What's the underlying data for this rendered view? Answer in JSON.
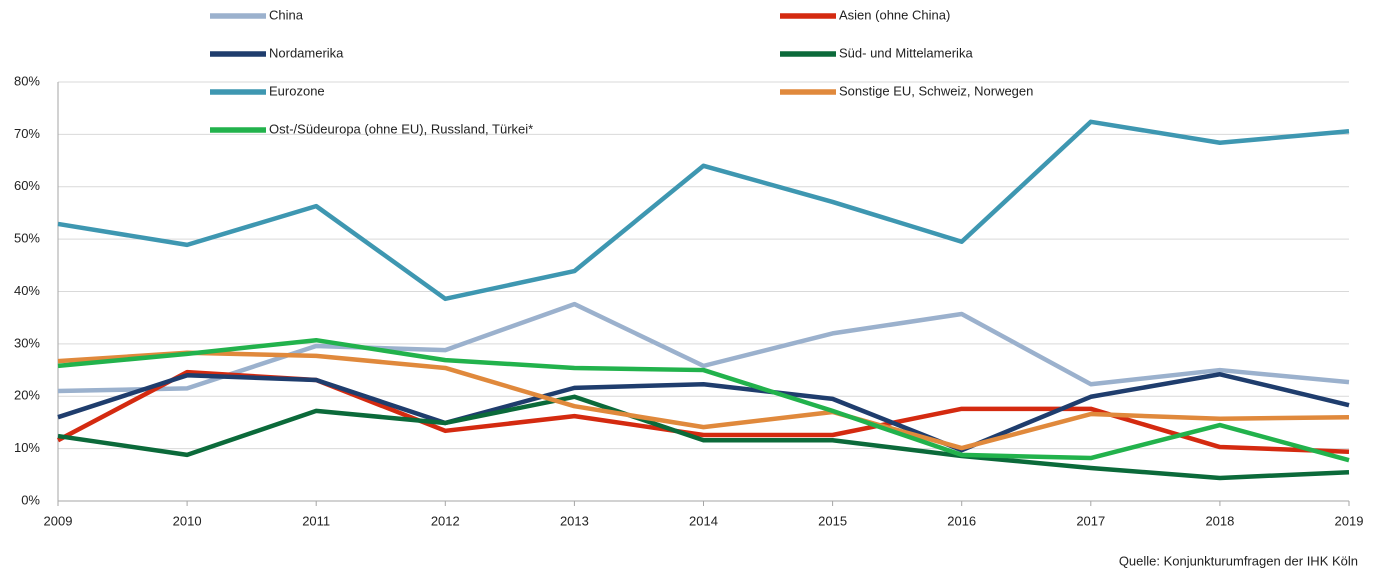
{
  "chart_data": {
    "type": "line",
    "x": [
      2009,
      2010,
      2011,
      2012,
      2013,
      2014,
      2015,
      2016,
      2017,
      2018,
      2019
    ],
    "xlim": [
      2009,
      2019
    ],
    "xticks": [
      2009,
      2010,
      2011,
      2012,
      2013,
      2014,
      2015,
      2016,
      2017,
      2018,
      2019
    ],
    "ylim": [
      0,
      80
    ],
    "yticks": [
      {
        "value": 0,
        "label": "0%"
      },
      {
        "value": 10,
        "label": "10%"
      },
      {
        "value": 20,
        "label": "20%"
      },
      {
        "value": 30,
        "label": "30%"
      },
      {
        "value": 40,
        "label": "40%"
      },
      {
        "value": 50,
        "label": "50%"
      },
      {
        "value": 60,
        "label": "60%"
      },
      {
        "value": 70,
        "label": "70%"
      },
      {
        "value": 80,
        "label": "80%"
      }
    ],
    "grid": true,
    "legend": "top",
    "series": [
      {
        "name": "China",
        "color": "#9bb1cd",
        "values": [
          21,
          21.5,
          29.6,
          28.8,
          37.6,
          25.8,
          32,
          35.7,
          22.3,
          25,
          22.7
        ]
      },
      {
        "name": "Asien (ohne China)",
        "color": "#d42a10",
        "values": [
          11.6,
          24.6,
          23.1,
          13.4,
          16.2,
          12.6,
          12.6,
          17.6,
          17.6,
          10.3,
          9.4
        ]
      },
      {
        "name": "Nordamerika",
        "color": "#1f3d6d",
        "values": [
          16,
          24,
          23.1,
          14.9,
          21.6,
          22.3,
          19.5,
          9.7,
          19.9,
          24.2,
          18.3
        ]
      },
      {
        "name": "Süd- und Mittelamerika",
        "color": "#0b6a3a",
        "values": [
          12.4,
          8.8,
          17.2,
          14.9,
          19.9,
          11.6,
          11.6,
          8.6,
          6.3,
          4.4,
          5.5
        ]
      },
      {
        "name": "Eurozone",
        "color": "#3e97b1",
        "values": [
          52.9,
          48.9,
          56.3,
          38.6,
          43.9,
          64,
          57.1,
          49.5,
          72.4,
          68.4,
          70.6
        ]
      },
      {
        "name": "Sonstige EU, Schweiz, Norwegen",
        "color": "#e0893c",
        "values": [
          26.7,
          28.3,
          27.7,
          25.4,
          18.1,
          14.1,
          17,
          10.1,
          16.6,
          15.7,
          16
        ]
      },
      {
        "name": "Ost-/Südeuropa (ohne EU), Russland, Türkei*",
        "color": "#22b24c",
        "values": [
          25.8,
          28.1,
          30.7,
          26.9,
          25.4,
          25,
          17.2,
          8.8,
          8.2,
          14.5,
          7.8
        ]
      }
    ],
    "source": "Quelle: Konjunkturumfragen der IHK Köln"
  }
}
